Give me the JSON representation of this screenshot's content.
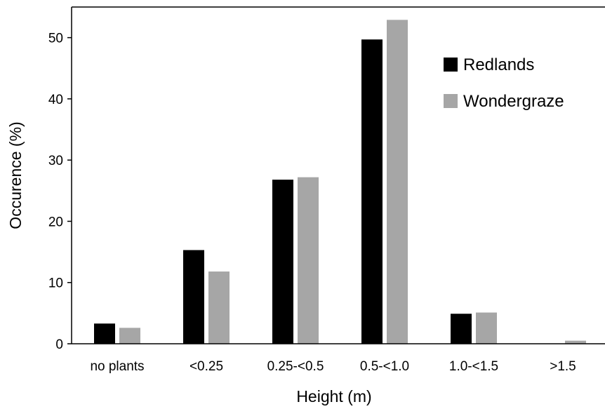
{
  "chart_data": {
    "type": "bar",
    "categories": [
      "no plants",
      "<0.25",
      "0.25-<0.5",
      "0.5-<1.0",
      "1.0-<1.5",
      ">1.5"
    ],
    "series": [
      {
        "name": "Redlands",
        "values": [
          3.3,
          15.3,
          26.8,
          49.7,
          4.9,
          0.0
        ],
        "color": "#000000"
      },
      {
        "name": "Wondergraze",
        "values": [
          2.6,
          11.8,
          27.2,
          52.9,
          5.1,
          0.5
        ],
        "color": "#a6a6a6"
      }
    ],
    "xlabel": "Height (m)",
    "ylabel": "Occurence (%)",
    "ylim": [
      0,
      55
    ],
    "yticks": [
      0,
      10,
      20,
      30,
      40,
      50
    ],
    "grid": false,
    "legend_position": "top-right"
  }
}
